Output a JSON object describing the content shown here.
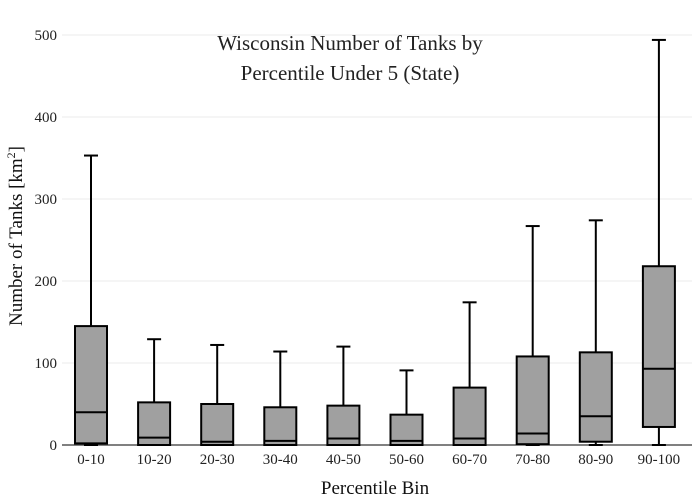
{
  "chart_data": {
    "type": "box",
    "title_line1": "Wisconsin Number of Tanks by",
    "title_line2": "Percentile Under 5 (State)",
    "xlabel": "Percentile Bin",
    "ylabel_main": "Number of Tanks  [km",
    "ylabel_sup": "2",
    "ylabel_close": "]",
    "ylim": [
      0,
      500
    ],
    "yticks": [
      0,
      100,
      200,
      300,
      400,
      500
    ],
    "grid": true,
    "categories": [
      "0-10",
      "10-20",
      "20-30",
      "30-40",
      "40-50",
      "50-60",
      "60-70",
      "70-80",
      "80-90",
      "90-100"
    ],
    "boxes": [
      {
        "min": 0,
        "q1": 2,
        "median": 40,
        "q3": 145,
        "max": 353
      },
      {
        "min": 0,
        "q1": 0,
        "median": 9,
        "q3": 52,
        "max": 129
      },
      {
        "min": 0,
        "q1": 0,
        "median": 4,
        "q3": 50,
        "max": 122
      },
      {
        "min": 0,
        "q1": 0,
        "median": 5,
        "q3": 46,
        "max": 114
      },
      {
        "min": 0,
        "q1": 0,
        "median": 8,
        "q3": 48,
        "max": 120
      },
      {
        "min": 0,
        "q1": 0,
        "median": 5,
        "q3": 37,
        "max": 91
      },
      {
        "min": 0,
        "q1": 0,
        "median": 8,
        "q3": 70,
        "max": 174
      },
      {
        "min": 0,
        "q1": 1,
        "median": 14,
        "q3": 108,
        "max": 267
      },
      {
        "min": 0,
        "q1": 4,
        "median": 35,
        "q3": 113,
        "max": 274
      },
      {
        "min": 0,
        "q1": 22,
        "median": 93,
        "q3": 218,
        "max": 494
      }
    ],
    "box_color": "#a0a0a0",
    "line_color": "#000000"
  }
}
